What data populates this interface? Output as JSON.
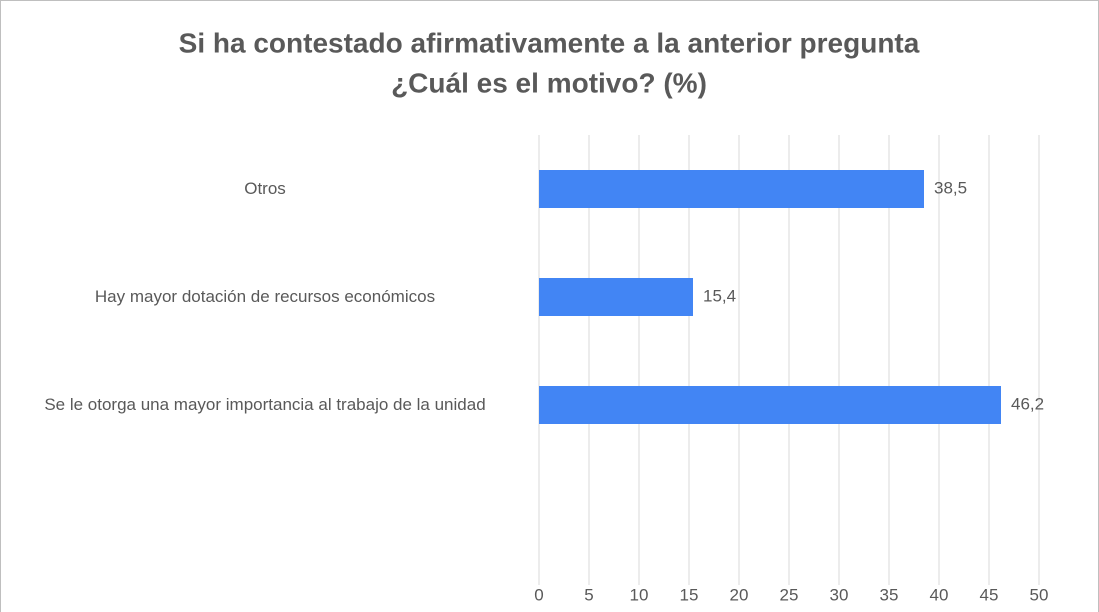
{
  "chart_data": {
    "type": "bar",
    "orientation": "horizontal",
    "title": [
      "Si ha contestado afirmativamente a la anterior pregunta",
      "¿Cuál es el motivo? (%)"
    ],
    "categories": [
      "Otros",
      "Hay mayor dotación de recursos económicos",
      "Se le otorga una mayor importancia al trabajo de la unidad"
    ],
    "values": [
      38.5,
      15.4,
      46.2
    ],
    "value_labels": [
      "38,5",
      "15,4",
      "46,2"
    ],
    "color": "#4285f4",
    "xlim": [
      0,
      50
    ],
    "xticks": [
      0,
      5,
      10,
      15,
      20,
      25,
      30,
      35,
      40,
      45,
      50
    ],
    "grid": true
  }
}
